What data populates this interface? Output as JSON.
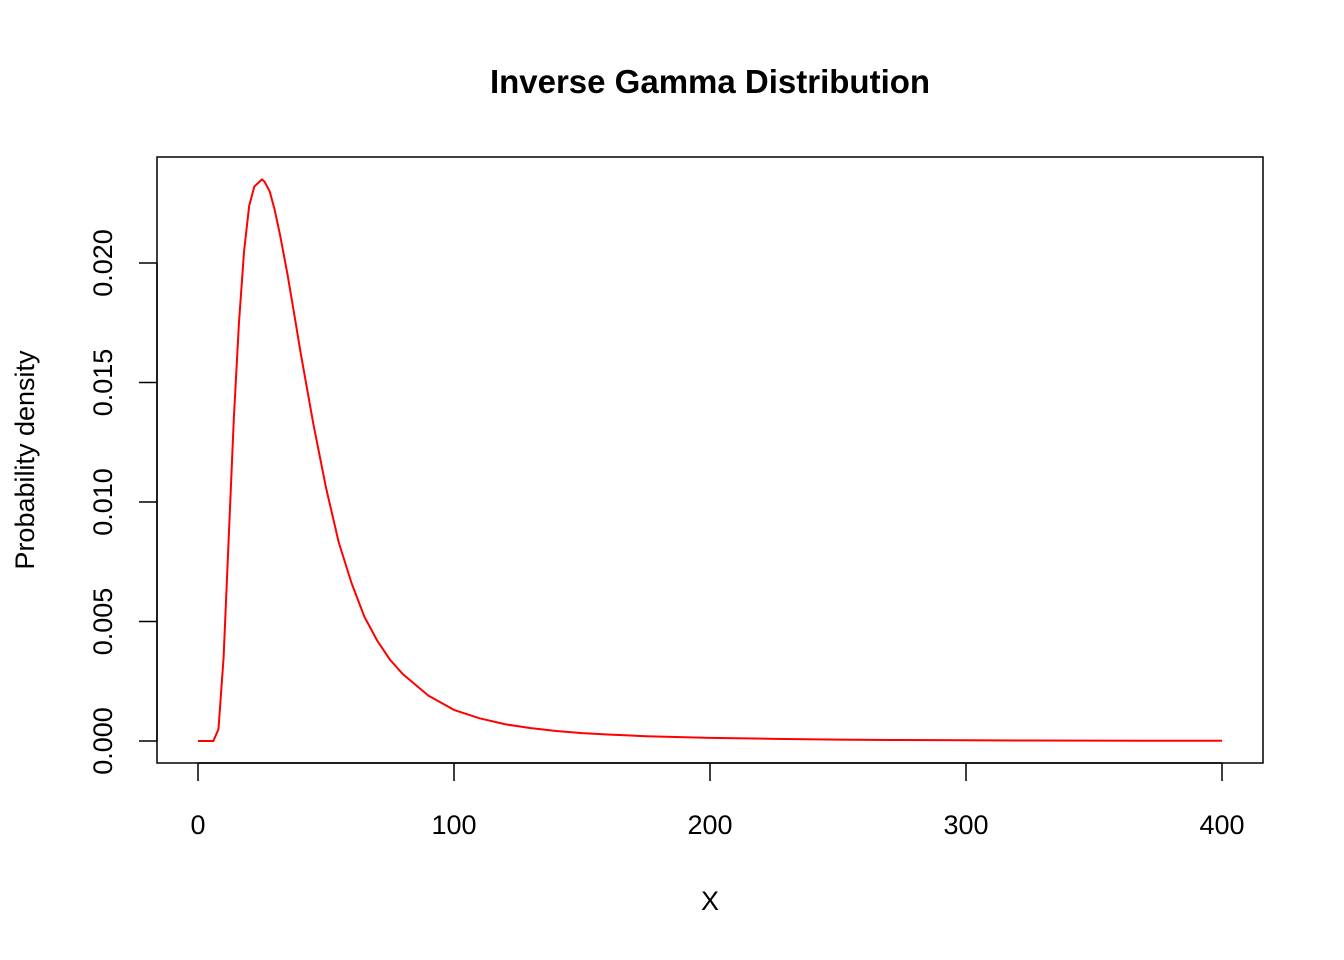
{
  "chart_data": {
    "type": "line",
    "title": "Inverse Gamma Distribution",
    "xlabel": "X",
    "ylabel": "Probability density",
    "xlim": [
      0,
      400
    ],
    "ylim": [
      0,
      0.0235
    ],
    "x_ticks": [
      0,
      100,
      200,
      300,
      400
    ],
    "x_tick_labels": [
      "0",
      "100",
      "200",
      "300",
      "400"
    ],
    "y_ticks": [
      0,
      0.005,
      0.01,
      0.015,
      0.02
    ],
    "y_tick_labels": [
      "0.000",
      "0.005",
      "0.010",
      "0.015",
      "0.020"
    ],
    "grid": false,
    "legend": "none",
    "series": [
      {
        "color": "#ff0000",
        "x": [
          0,
          4,
          6,
          8,
          10,
          12,
          14,
          16,
          18,
          20,
          22,
          24,
          25,
          26,
          28,
          30,
          32,
          35,
          38,
          40,
          45,
          50,
          55,
          60,
          65,
          70,
          75,
          80,
          90,
          100,
          110,
          120,
          130,
          140,
          150,
          160,
          175,
          200,
          225,
          250,
          275,
          300,
          325,
          350,
          375,
          400
        ],
        "y": [
          0,
          0,
          0,
          0.0005,
          0.0035,
          0.0085,
          0.0135,
          0.0175,
          0.0205,
          0.0224,
          0.0232,
          0.0234,
          0.0235,
          0.0234,
          0.023,
          0.0222,
          0.0212,
          0.0195,
          0.0176,
          0.0163,
          0.0133,
          0.0106,
          0.0083,
          0.0066,
          0.0052,
          0.0042,
          0.0034,
          0.0028,
          0.0019,
          0.0013,
          0.00095,
          0.0007,
          0.00054,
          0.00042,
          0.00033,
          0.00027,
          0.0002,
          0.00013,
          9e-05,
          6e-05,
          4e-05,
          3e-05,
          2e-05,
          1.5e-05,
          1e-05,
          8e-06
        ]
      }
    ]
  }
}
